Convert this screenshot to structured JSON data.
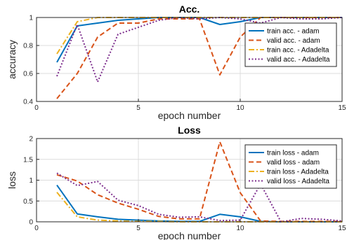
{
  "chart_data": [
    {
      "type": "line",
      "title": "Acc.",
      "xlabel": "epoch number",
      "ylabel": "accuracy",
      "xlim": [
        0,
        15
      ],
      "ylim": [
        0.4,
        1
      ],
      "xticks": [
        0,
        5,
        10,
        15
      ],
      "yticks": [
        0.4,
        0.6,
        0.8,
        1
      ],
      "xtick_labels": [
        "0",
        "5",
        "10",
        "15"
      ],
      "ytick_labels": [
        "0.4",
        "0.6",
        "0.8",
        "1"
      ],
      "grid": true,
      "legend_position": "right",
      "x": [
        1,
        2,
        3,
        4,
        5,
        6,
        7,
        8,
        9,
        10,
        11,
        12,
        13,
        14,
        15
      ],
      "series": [
        {
          "name": "train acc. - adam",
          "color": "#0072BD",
          "style": "solid",
          "values": [
            0.68,
            0.94,
            0.96,
            0.98,
            0.99,
            1.0,
            1.0,
            1.0,
            0.95,
            0.97,
            1.0,
            1.0,
            1.0,
            1.0,
            1.0
          ]
        },
        {
          "name": "valid acc. - adam",
          "color": "#D95319",
          "style": "dashed",
          "values": [
            0.42,
            0.6,
            0.86,
            0.96,
            0.96,
            0.99,
            0.99,
            0.99,
            0.59,
            0.86,
            1.0,
            1.0,
            1.0,
            1.0,
            1.0
          ]
        },
        {
          "name": "train acc. - Adadelta",
          "color": "#EDB120",
          "style": "dashdot",
          "values": [
            0.74,
            0.97,
            1.0,
            1.0,
            1.0,
            1.0,
            1.0,
            1.0,
            1.0,
            1.0,
            1.0,
            1.0,
            1.0,
            1.0,
            1.0
          ]
        },
        {
          "name": "valid acc. - Adadelta",
          "color": "#7E2F8E",
          "style": "dotted",
          "values": [
            0.58,
            0.95,
            0.54,
            0.88,
            0.93,
            0.98,
            1.0,
            0.99,
            1.0,
            0.99,
            0.96,
            1.0,
            0.99,
            0.99,
            1.0
          ]
        }
      ]
    },
    {
      "type": "line",
      "title": "Loss",
      "xlabel": "epoch number",
      "ylabel": "loss",
      "xlim": [
        0,
        15
      ],
      "ylim": [
        0,
        2
      ],
      "xticks": [
        0,
        5,
        10,
        15
      ],
      "yticks": [
        0,
        0.5,
        1,
        1.5,
        2
      ],
      "xtick_labels": [
        "0",
        "5",
        "10",
        "15"
      ],
      "ytick_labels": [
        "0",
        "0.5",
        "1",
        "1.5",
        "2"
      ],
      "grid": true,
      "legend_position": "right",
      "x": [
        1,
        2,
        3,
        4,
        5,
        6,
        7,
        8,
        9,
        10,
        11,
        12,
        13,
        14,
        15
      ],
      "series": [
        {
          "name": "train loss - adam",
          "color": "#0072BD",
          "style": "solid",
          "values": [
            0.88,
            0.19,
            0.12,
            0.06,
            0.04,
            0.02,
            0.01,
            0.01,
            0.18,
            0.12,
            0.01,
            0.0,
            0.0,
            0.0,
            0.0
          ]
        },
        {
          "name": "valid loss - adam",
          "color": "#D95319",
          "style": "dashed",
          "values": [
            1.13,
            0.98,
            0.65,
            0.45,
            0.3,
            0.13,
            0.07,
            0.07,
            1.92,
            0.7,
            0.02,
            0.01,
            0.01,
            0.01,
            0.01
          ]
        },
        {
          "name": "train loss - Adadelta",
          "color": "#EDB120",
          "style": "dashdot",
          "values": [
            0.71,
            0.12,
            0.04,
            0.02,
            0.01,
            0.01,
            0.0,
            0.0,
            0.0,
            0.0,
            0.0,
            0.0,
            0.0,
            0.0,
            0.0
          ]
        },
        {
          "name": "valid loss - Adadelta",
          "color": "#7E2F8E",
          "style": "dotted",
          "values": [
            1.17,
            0.87,
            0.97,
            0.52,
            0.39,
            0.18,
            0.11,
            0.12,
            0.03,
            0.04,
            0.91,
            0.0,
            0.08,
            0.06,
            0.02
          ]
        }
      ]
    }
  ]
}
